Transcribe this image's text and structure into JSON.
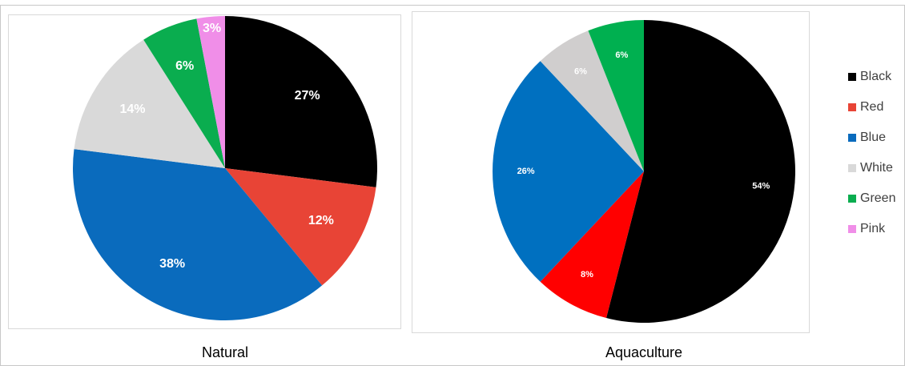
{
  "chart_data": [
    {
      "type": "pie",
      "title": "Natural",
      "categories": [
        "Black",
        "Red",
        "Blue",
        "White",
        "Green",
        "Pink"
      ],
      "values": [
        27,
        12,
        38,
        14,
        6,
        3
      ],
      "value_labels": [
        "27%",
        "12%",
        "38%",
        "14%",
        "6%",
        "3%"
      ],
      "colors": [
        "#000000",
        "#e84436",
        "#0a6bbd",
        "#d9d9d9",
        "#0aad4f",
        "#f08ee8"
      ],
      "legend": "right"
    },
    {
      "type": "pie",
      "title": "Aquaculture",
      "categories": [
        "Black",
        "Red",
        "Blue",
        "White",
        "Green"
      ],
      "values": [
        54,
        8,
        26,
        6,
        6
      ],
      "value_labels": [
        "54%",
        "8%",
        "26%",
        "6%",
        "6%"
      ],
      "colors": [
        "#000000",
        "#ff0000",
        "#0070c0",
        "#d0cece",
        "#00b050"
      ]
    }
  ]
}
